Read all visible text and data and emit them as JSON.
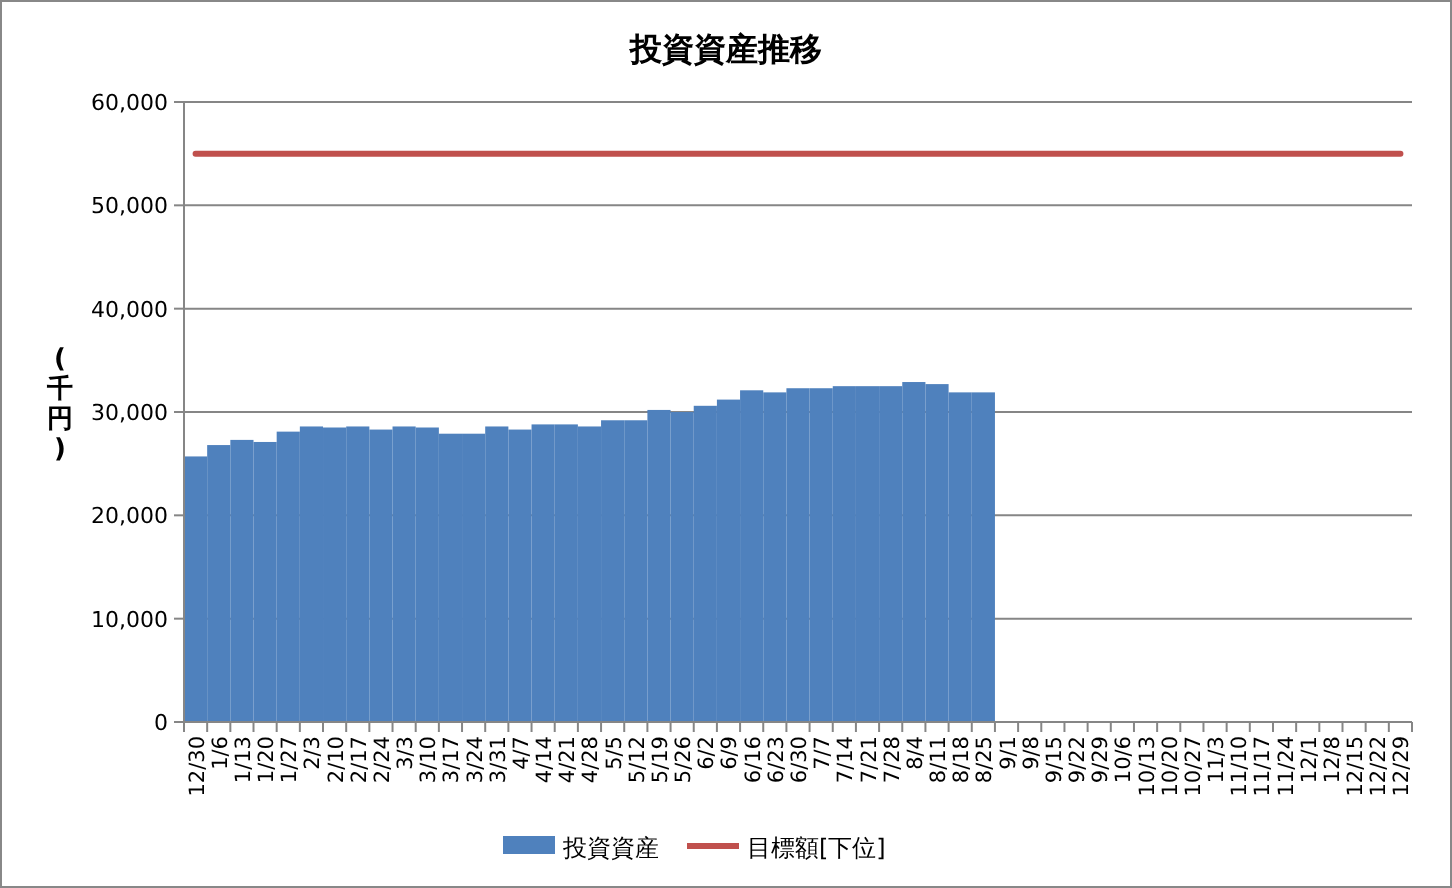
{
  "chart_data": {
    "type": "bar",
    "title": "投資資産推移",
    "ylabel": "(千円)",
    "categories": [
      "12/30",
      "1/6",
      "1/13",
      "1/20",
      "1/27",
      "2/3",
      "2/10",
      "2/17",
      "2/24",
      "3/3",
      "3/10",
      "3/17",
      "3/24",
      "3/31",
      "4/7",
      "4/14",
      "4/21",
      "4/28",
      "5/5",
      "5/12",
      "5/19",
      "5/26",
      "6/2",
      "6/9",
      "6/16",
      "6/23",
      "6/30",
      "7/7",
      "7/14",
      "7/21",
      "7/28",
      "8/4",
      "8/11",
      "8/18",
      "8/25",
      "9/1",
      "9/8",
      "9/15",
      "9/22",
      "9/29",
      "10/6",
      "10/13",
      "10/20",
      "10/27",
      "11/3",
      "11/10",
      "11/17",
      "11/24",
      "12/1",
      "12/8",
      "12/15",
      "12/22",
      "12/29"
    ],
    "series": [
      {
        "name": "投資資産",
        "color": "#4f81bd",
        "values": [
          25700,
          26800,
          27300,
          27100,
          28100,
          28600,
          28500,
          28600,
          28300,
          28600,
          28500,
          27900,
          27900,
          28600,
          28300,
          28800,
          28800,
          28600,
          29200,
          29200,
          30200,
          30000,
          30600,
          31200,
          32100,
          31900,
          32300,
          32300,
          32500,
          32500,
          32500,
          32900,
          32700,
          31900,
          31900,
          null,
          null,
          null,
          null,
          null,
          null,
          null,
          null,
          null,
          null,
          null,
          null,
          null,
          null,
          null,
          null,
          null,
          null
        ]
      },
      {
        "name": "目標額[下位]",
        "type": "line",
        "color": "#c0504d",
        "values": [
          55000,
          55000,
          55000,
          55000,
          55000,
          55000,
          55000,
          55000,
          55000,
          55000,
          55000,
          55000,
          55000,
          55000,
          55000,
          55000,
          55000,
          55000,
          55000,
          55000,
          55000,
          55000,
          55000,
          55000,
          55000,
          55000,
          55000,
          55000,
          55000,
          55000,
          55000,
          55000,
          55000,
          55000,
          55000,
          55000,
          55000,
          55000,
          55000,
          55000,
          55000,
          55000,
          55000,
          55000,
          55000,
          55000,
          55000,
          55000,
          55000,
          55000,
          55000,
          55000,
          55000
        ]
      }
    ],
    "ylim": [
      0,
      60000
    ],
    "yticks": [
      {
        "value": 0,
        "label": "0"
      },
      {
        "value": 10000,
        "label": "10,000"
      },
      {
        "value": 20000,
        "label": "20,000"
      },
      {
        "value": 30000,
        "label": "30,000"
      },
      {
        "value": 40000,
        "label": "40,000"
      },
      {
        "value": 50000,
        "label": "50,000"
      },
      {
        "value": 60000,
        "label": "60,000"
      }
    ],
    "grid": "y",
    "legend": "bottom"
  }
}
